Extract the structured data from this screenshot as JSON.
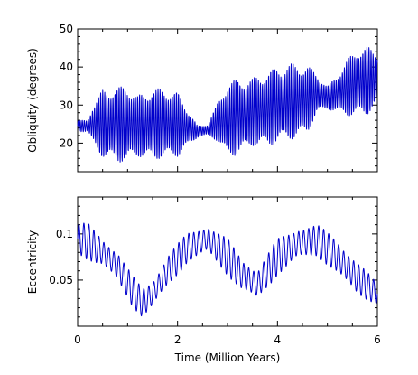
{
  "chart_data": [
    {
      "type": "line",
      "panel": "top",
      "ylabel": "Obliquity (degrees)",
      "xlabel": "",
      "xlim": [
        0,
        6
      ],
      "ylim": [
        12.5,
        50
      ],
      "yticks": [
        20,
        30,
        40,
        50
      ],
      "ytick_labels": [
        "20",
        "30",
        "40",
        "50"
      ],
      "xticks": [
        0,
        2,
        4,
        6
      ],
      "xtick_labels_shown": false,
      "grid": false,
      "series": [
        {
          "color": "#0000cc",
          "period_myr": 0.041,
          "envelope_x": [
            0.0,
            0.2,
            0.3,
            0.5,
            0.8,
            1.0,
            1.2,
            1.5,
            1.8,
            2.0,
            2.2,
            2.4,
            2.6,
            2.8,
            3.0,
            3.2,
            3.5,
            3.8,
            4.0,
            4.3,
            4.6,
            4.8,
            5.0,
            5.2,
            5.4,
            5.6,
            5.8,
            6.0
          ],
          "mean": [
            24.5,
            24.5,
            25,
            25,
            25,
            25,
            24.5,
            25,
            25,
            25,
            24,
            23,
            23.5,
            25.5,
            26,
            27,
            28,
            29,
            30,
            31,
            31.5,
            33,
            32,
            33,
            34.5,
            36,
            36.5,
            37
          ],
          "amplitude": [
            1.5,
            1.5,
            5,
            9,
            10,
            10,
            8,
            9.5,
            9,
            8.5,
            5,
            1.5,
            1.5,
            5,
            10,
            10,
            9,
            10,
            10,
            10,
            9,
            5,
            3,
            5,
            7.5,
            9,
            9,
            7
          ]
        }
      ]
    },
    {
      "type": "line",
      "panel": "bottom",
      "ylabel": "Eccentricity",
      "xlabel": "Time (Million Years)",
      "xlim": [
        0,
        6
      ],
      "ylim": [
        0.0,
        0.14
      ],
      "yticks": [
        0.05,
        0.1
      ],
      "ytick_labels": [
        "0.05",
        "0.1"
      ],
      "xticks": [
        0,
        2,
        4,
        6
      ],
      "xtick_labels": [
        "0",
        "2",
        "4",
        "6"
      ],
      "grid": false,
      "series": [
        {
          "color": "#0000cc",
          "period_myr": 0.1,
          "envelope_x": [
            0.0,
            0.2,
            0.5,
            0.8,
            1.1,
            1.3,
            1.5,
            1.8,
            2.2,
            2.6,
            3.0,
            3.3,
            3.6,
            4.0,
            4.4,
            4.8,
            5.2,
            5.6,
            6.0
          ],
          "mean": [
            0.095,
            0.092,
            0.08,
            0.065,
            0.038,
            0.025,
            0.035,
            0.06,
            0.085,
            0.095,
            0.075,
            0.055,
            0.045,
            0.075,
            0.09,
            0.093,
            0.075,
            0.052,
            0.035
          ],
          "amplitude": [
            0.018,
            0.02,
            0.015,
            0.018,
            0.017,
            0.016,
            0.015,
            0.018,
            0.016,
            0.016,
            0.02,
            0.018,
            0.017,
            0.02,
            0.018,
            0.017,
            0.02,
            0.018,
            0.012
          ]
        }
      ]
    }
  ]
}
